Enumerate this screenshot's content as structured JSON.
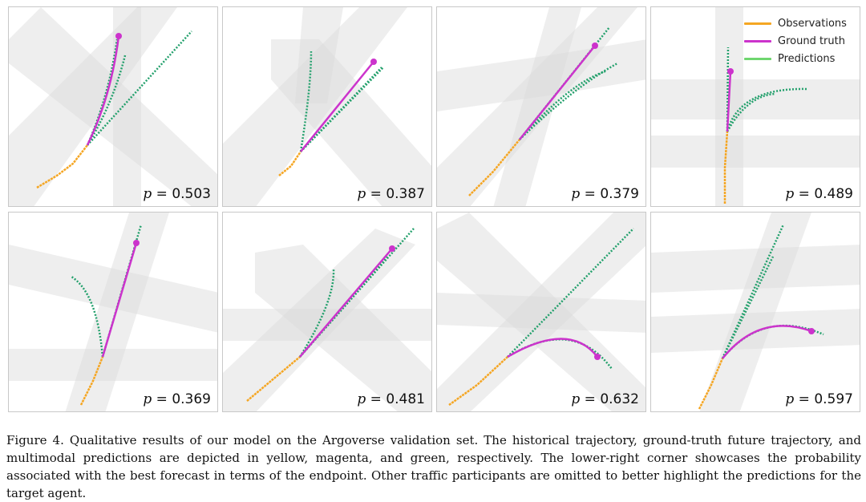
{
  "colors": {
    "observations": "#f5a623",
    "ground_truth": "#cc33cc",
    "predictions": "#6fd66f",
    "prediction_dark": "#23a06c",
    "road": "#e6e6e6"
  },
  "legend": {
    "items": [
      {
        "label": "Observations",
        "color": "#f5a623"
      },
      {
        "label": "Ground truth",
        "color": "#cc33cc"
      },
      {
        "label": "Predictions",
        "color": "#6fd66f"
      }
    ]
  },
  "panels": [
    {
      "p_symbol": "p",
      "p_value": "= 0.503"
    },
    {
      "p_symbol": "p",
      "p_value": "= 0.387"
    },
    {
      "p_symbol": "p",
      "p_value": "= 0.379"
    },
    {
      "p_symbol": "p",
      "p_value": "= 0.489"
    },
    {
      "p_symbol": "p",
      "p_value": "= 0.369"
    },
    {
      "p_symbol": "p",
      "p_value": "= 0.481"
    },
    {
      "p_symbol": "p",
      "p_value": "= 0.632"
    },
    {
      "p_symbol": "p",
      "p_value": "= 0.597"
    }
  ],
  "caption": "Figure 4. Qualitative results of our model on the Argoverse validation set. The historical trajectory, ground-truth future trajectory, and multimodal predictions are depicted in yellow, magenta, and green, respectively. The lower-right corner showcases the probability associated with the best forecast in terms of the endpoint. Other traffic participants are omitted to better highlight the predictions for the target agent."
}
